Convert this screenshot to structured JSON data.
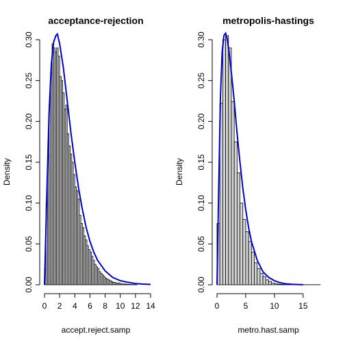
{
  "chart_data": [
    {
      "type": "bar",
      "title": "acceptance-rejection",
      "xlabel": "accept.reject.samp",
      "ylabel": "Density",
      "xlim": [
        0,
        14
      ],
      "ylim": [
        0,
        0.3
      ],
      "xticks": [
        0,
        2,
        4,
        6,
        8,
        10,
        12,
        14
      ],
      "yticks": [
        0.0,
        0.05,
        0.1,
        0.15,
        0.2,
        0.25,
        0.3
      ],
      "bin_width": 0.2,
      "bins_start": [
        0.0,
        0.2,
        0.4,
        0.6,
        0.8,
        1.0,
        1.2,
        1.4,
        1.6,
        1.8,
        2.0,
        2.2,
        2.4,
        2.6,
        2.8,
        3.0,
        3.2,
        3.4,
        3.6,
        3.8,
        4.0,
        4.2,
        4.4,
        4.6,
        4.8,
        5.0,
        5.2,
        5.4,
        5.6,
        5.8,
        6.0,
        6.2,
        6.4,
        6.6,
        6.8,
        7.0,
        7.2,
        7.4,
        7.6,
        7.8,
        8.0,
        8.2,
        8.4,
        8.6,
        8.8,
        9.0,
        9.2,
        9.4,
        9.6,
        9.8,
        10.0,
        10.2,
        10.4,
        10.6,
        10.8,
        11.0,
        11.2,
        11.4,
        11.6,
        11.8,
        12.0
      ],
      "density": [
        0.02,
        0.1,
        0.16,
        0.22,
        0.26,
        0.295,
        0.29,
        0.285,
        0.29,
        0.28,
        0.255,
        0.25,
        0.235,
        0.215,
        0.22,
        0.185,
        0.17,
        0.16,
        0.15,
        0.135,
        0.12,
        0.115,
        0.105,
        0.085,
        0.075,
        0.07,
        0.06,
        0.055,
        0.048,
        0.043,
        0.04,
        0.035,
        0.03,
        0.025,
        0.022,
        0.02,
        0.016,
        0.014,
        0.012,
        0.01,
        0.008,
        0.007,
        0.006,
        0.005,
        0.004,
        0.003,
        0.003,
        0.002,
        0.002,
        0.002,
        0.001,
        0.001,
        0.001,
        0.0008,
        0.0006,
        0.0005,
        0.0004,
        0.0003,
        0.0002,
        0.0002,
        0.0001
      ],
      "curve_x": [
        0.0,
        0.3,
        0.6,
        0.9,
        1.2,
        1.5,
        1.7,
        2.0,
        2.5,
        3.0,
        3.5,
        4.0,
        4.5,
        5.0,
        5.5,
        6.0,
        6.5,
        7.0,
        8.0,
        9.0,
        10.0,
        11.0,
        12.0,
        13.0,
        14.0
      ],
      "curve_y": [
        0.0,
        0.11,
        0.21,
        0.27,
        0.297,
        0.305,
        0.307,
        0.295,
        0.265,
        0.225,
        0.185,
        0.15,
        0.118,
        0.092,
        0.07,
        0.053,
        0.04,
        0.03,
        0.017,
        0.009,
        0.005,
        0.003,
        0.0015,
        0.0008,
        0.0004
      ]
    },
    {
      "type": "bar",
      "title": "metropolis-hastings",
      "xlabel": "metro.hast.samp",
      "ylabel": "Density",
      "xlim": [
        0,
        18
      ],
      "ylim": [
        0,
        0.3
      ],
      "xticks": [
        0,
        5,
        10,
        15
      ],
      "yticks": [
        0.0,
        0.05,
        0.1,
        0.15,
        0.2,
        0.25,
        0.3
      ],
      "bin_width": 0.5,
      "bins_start": [
        0.0,
        0.5,
        1.0,
        1.5,
        2.0,
        2.5,
        3.0,
        3.5,
        4.0,
        4.5,
        5.0,
        5.5,
        6.0,
        6.5,
        7.0,
        7.5,
        8.0,
        8.5,
        9.0,
        9.5,
        10.0,
        10.5,
        11.0,
        11.5,
        12.0,
        12.5,
        13.0,
        13.5,
        14.0,
        14.5,
        15.0,
        15.5,
        16.0,
        16.5,
        17.0,
        17.5
      ],
      "density": [
        0.075,
        0.222,
        0.3,
        0.305,
        0.29,
        0.224,
        0.175,
        0.137,
        0.1,
        0.08,
        0.065,
        0.053,
        0.04,
        0.027,
        0.02,
        0.014,
        0.01,
        0.006,
        0.004,
        0.002,
        0.0012,
        0.0008,
        0.0005,
        0.0003,
        0.0002,
        0.0002,
        0.0001,
        0.0001,
        0.0001,
        0.0001,
        0.0001,
        0.0001,
        0.0001,
        0.0001,
        0.0001,
        0.0001
      ],
      "curve_x": [
        0.0,
        0.3,
        0.6,
        0.9,
        1.2,
        1.5,
        1.8,
        2.1,
        2.5,
        3.0,
        3.5,
        4.0,
        4.5,
        5.0,
        5.5,
        6.0,
        7.0,
        8.0,
        9.0,
        10.0,
        11.0,
        12.0,
        13.0,
        14.0,
        15.0
      ],
      "curve_y": [
        0.0,
        0.12,
        0.23,
        0.285,
        0.305,
        0.308,
        0.3,
        0.285,
        0.26,
        0.225,
        0.185,
        0.15,
        0.118,
        0.092,
        0.07,
        0.053,
        0.03,
        0.016,
        0.009,
        0.005,
        0.0025,
        0.0012,
        0.0006,
        0.0003,
        0.0001
      ]
    }
  ]
}
